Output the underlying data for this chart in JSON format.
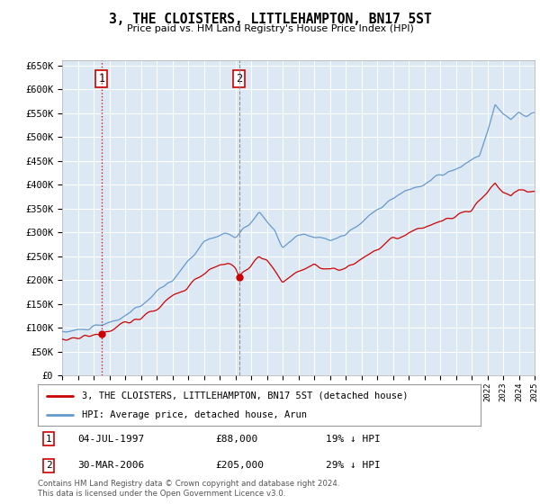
{
  "title": "3, THE CLOISTERS, LITTLEHAMPTON, BN17 5ST",
  "subtitle": "Price paid vs. HM Land Registry's House Price Index (HPI)",
  "background_color": "#dce9f5",
  "grid_color": "#ffffff",
  "ylim": [
    0,
    660000
  ],
  "yticks": [
    0,
    50000,
    100000,
    150000,
    200000,
    250000,
    300000,
    350000,
    400000,
    450000,
    500000,
    550000,
    600000,
    650000
  ],
  "legend_line1": "3, THE CLOISTERS, LITTLEHAMPTON, BN17 5ST (detached house)",
  "legend_line2": "HPI: Average price, detached house, Arun",
  "annotation1_label": "1",
  "annotation1_date": "04-JUL-1997",
  "annotation1_price": "£88,000",
  "annotation1_hpi": "19% ↓ HPI",
  "annotation2_label": "2",
  "annotation2_date": "30-MAR-2006",
  "annotation2_price": "£205,000",
  "annotation2_hpi": "29% ↓ HPI",
  "footer": "Contains HM Land Registry data © Crown copyright and database right 2024.\nThis data is licensed under the Open Government Licence v3.0.",
  "red_color": "#cc0000",
  "blue_color": "#6699cc",
  "sale1_year": 1997.5,
  "sale1_price": 88000,
  "sale2_year": 2006.25,
  "sale2_price": 205000,
  "xstart": 1995,
  "xend": 2025
}
